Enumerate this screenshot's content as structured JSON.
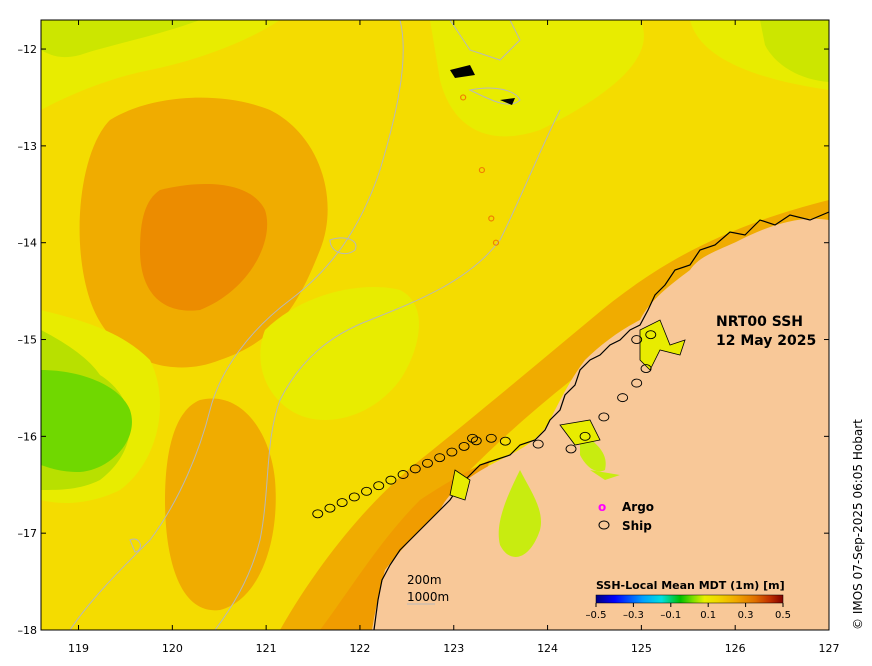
{
  "title": {
    "line1": "NRT00 SSH",
    "line2": "12 May 2025"
  },
  "credit": "© IMOS 07-Sep-2025 06:05 Hobart",
  "axes": {
    "x_ticks": [
      "119",
      "120",
      "121",
      "122",
      "123",
      "124",
      "125",
      "126",
      "127"
    ],
    "y_ticks": [
      "-12",
      "-13",
      "-14",
      "-15",
      "-16",
      "-17",
      "-18"
    ],
    "lon_range": [
      118.6,
      127.0
    ],
    "lat_range": [
      -18.0,
      -11.7
    ]
  },
  "legend": {
    "argo_label": "Argo",
    "ship_label": "Ship",
    "argo_color": "#ff00ff",
    "ship_color": "#000000"
  },
  "colorbar": {
    "title": "SSH-Local Mean MDT (1m) [m]",
    "tick_labels": [
      "-0.5",
      "-0.3",
      "-0.1",
      "0.1",
      "0.3",
      "0.5"
    ],
    "stops": [
      "#000080",
      "#0000ff",
      "#00a0ff",
      "#00e0e0",
      "#00c000",
      "#80e000",
      "#e8f000",
      "#f0d800",
      "#f0a800",
      "#e07000",
      "#c03000",
      "#800000"
    ]
  },
  "scale_labels": {
    "contour1": "200m",
    "contour2": "1000m"
  },
  "colors": {
    "land": "#f8c898",
    "ocean_base": "#f4dc00",
    "bathymetry": "#b8b8b8"
  }
}
